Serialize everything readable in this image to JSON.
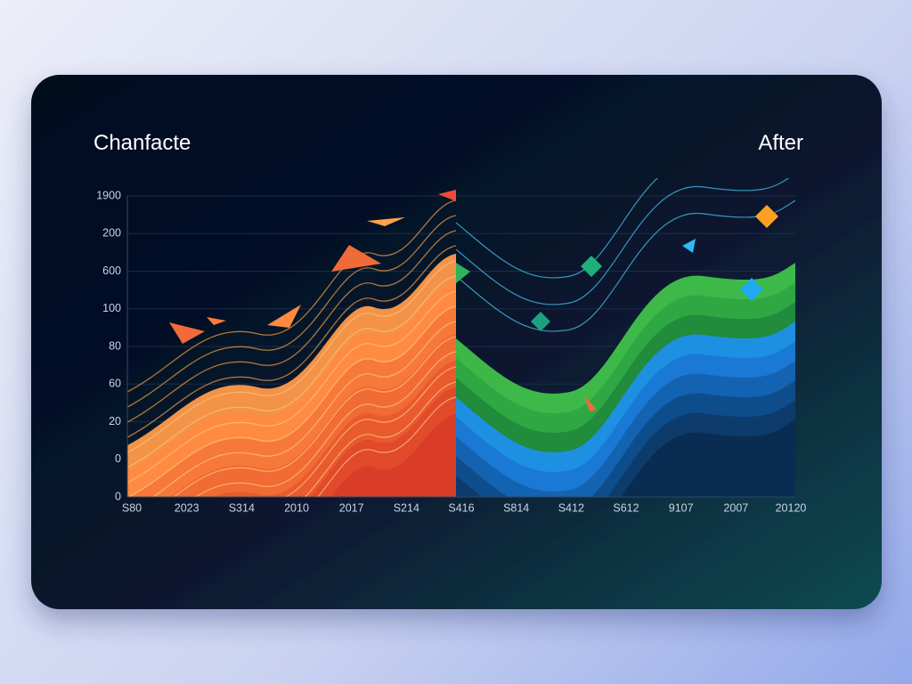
{
  "panel": {
    "title_left": "Chanfacte",
    "title_right": "After",
    "y_labels": [
      "1900",
      "200",
      "600",
      "100",
      "80",
      "60",
      "20",
      "0",
      "0"
    ],
    "x_labels": [
      "S80",
      "2023",
      "S314",
      "2010",
      "2017",
      "S214",
      "S416",
      "S814",
      "S412",
      "S612",
      "9107",
      "2007",
      "20120"
    ]
  }
}
